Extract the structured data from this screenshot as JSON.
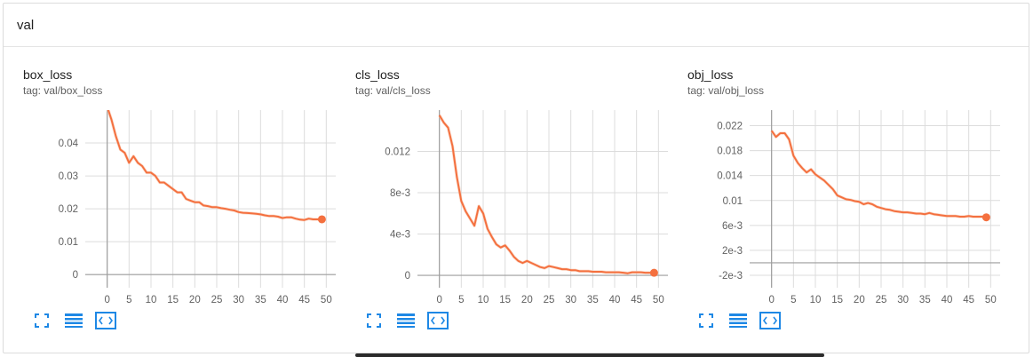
{
  "group": {
    "title": "val"
  },
  "colors": {
    "line": "#f4703f",
    "smoothed_bg": "#f8c9b3",
    "grid": "#dcdcdc",
    "axis": "#9e9e9e",
    "icon": "#1e88e5"
  },
  "toolbar": {
    "icons": [
      "fullscreen-icon",
      "data-table-icon",
      "fit-domain-icon"
    ]
  },
  "chart_data": [
    {
      "type": "line",
      "title": "box_loss",
      "tag": "tag: val/box_loss",
      "xlim": [
        -5,
        55
      ],
      "ylim": [
        -0.004,
        0.05
      ],
      "x_ticks": [
        0,
        5,
        10,
        15,
        20,
        25,
        30,
        35,
        40,
        45,
        50
      ],
      "x_tick_labels": [
        "0",
        "5",
        "10",
        "15",
        "20",
        "25",
        "30",
        "35",
        "40",
        "45",
        "50"
      ],
      "y_ticks": [
        0,
        0.01,
        0.02,
        0.03,
        0.04
      ],
      "y_tick_labels": [
        "0",
        "0.01",
        "0.02",
        "0.03",
        "0.04"
      ],
      "grid": true,
      "x": [
        0,
        1,
        2,
        3,
        4,
        5,
        6,
        7,
        8,
        9,
        10,
        11,
        12,
        13,
        14,
        15,
        16,
        17,
        18,
        19,
        20,
        21,
        22,
        23,
        24,
        25,
        26,
        27,
        28,
        29,
        30,
        31,
        32,
        33,
        34,
        35,
        36,
        37,
        38,
        39,
        40,
        41,
        42,
        43,
        44,
        45,
        46,
        47,
        48,
        49
      ],
      "y": [
        0.051,
        0.047,
        0.042,
        0.038,
        0.037,
        0.034,
        0.036,
        0.034,
        0.033,
        0.031,
        0.031,
        0.03,
        0.028,
        0.028,
        0.027,
        0.026,
        0.025,
        0.025,
        0.023,
        0.0225,
        0.022,
        0.022,
        0.021,
        0.0208,
        0.0205,
        0.0205,
        0.0202,
        0.02,
        0.0197,
        0.0195,
        0.019,
        0.0188,
        0.0187,
        0.0186,
        0.0185,
        0.0183,
        0.018,
        0.0178,
        0.0178,
        0.0176,
        0.0172,
        0.0174,
        0.0174,
        0.017,
        0.0167,
        0.0166,
        0.017,
        0.0168,
        0.0168,
        0.0168
      ]
    },
    {
      "type": "line",
      "title": "cls_loss",
      "tag": "tag: val/cls_loss",
      "xlim": [
        -5,
        55
      ],
      "ylim": [
        -0.0012,
        0.016
      ],
      "x_ticks": [
        0,
        5,
        10,
        15,
        20,
        25,
        30,
        35,
        40,
        45,
        50
      ],
      "x_tick_labels": [
        "0",
        "5",
        "10",
        "15",
        "20",
        "25",
        "30",
        "35",
        "40",
        "45",
        "50"
      ],
      "y_ticks": [
        0,
        0.004,
        0.008,
        0.012
      ],
      "y_tick_labels": [
        "0",
        "4e-3",
        "8e-3",
        "0.012"
      ],
      "grid": true,
      "x": [
        0,
        1,
        2,
        3,
        4,
        5,
        6,
        7,
        8,
        9,
        10,
        11,
        12,
        13,
        14,
        15,
        16,
        17,
        18,
        19,
        20,
        21,
        22,
        23,
        24,
        25,
        26,
        27,
        28,
        29,
        30,
        31,
        32,
        33,
        34,
        35,
        36,
        37,
        38,
        39,
        40,
        41,
        42,
        43,
        44,
        45,
        46,
        47,
        48,
        49
      ],
      "y": [
        0.0155,
        0.0148,
        0.0143,
        0.0125,
        0.0095,
        0.0072,
        0.0062,
        0.0055,
        0.0048,
        0.0067,
        0.006,
        0.0045,
        0.0037,
        0.003,
        0.0027,
        0.0029,
        0.0024,
        0.0018,
        0.0014,
        0.0012,
        0.0014,
        0.0012,
        0.001,
        0.0008,
        0.0007,
        0.0009,
        0.0008,
        0.0007,
        0.0006,
        0.0006,
        0.0005,
        0.0005,
        0.0004,
        0.0004,
        0.0004,
        0.00035,
        0.00035,
        0.00035,
        0.0003,
        0.0003,
        0.0003,
        0.0003,
        0.00025,
        0.0002,
        0.0003,
        0.0003,
        0.0003,
        0.00025,
        0.00025,
        0.00025
      ]
    },
    {
      "type": "line",
      "title": "obj_loss",
      "tag": "tag: val/obj_loss",
      "xlim": [
        -5,
        55
      ],
      "ylim": [
        -0.004,
        0.0245
      ],
      "x_ticks": [
        0,
        5,
        10,
        15,
        20,
        25,
        30,
        35,
        40,
        45,
        50
      ],
      "x_tick_labels": [
        "0",
        "5",
        "10",
        "15",
        "20",
        "25",
        "30",
        "35",
        "40",
        "45",
        "50"
      ],
      "y_ticks": [
        -0.002,
        0.002,
        0.006,
        0.01,
        0.014,
        0.018,
        0.022
      ],
      "y_tick_labels": [
        "-2e-3",
        "2e-3",
        "6e-3",
        "0.01",
        "0.014",
        "0.018",
        "0.022"
      ],
      "grid": true,
      "x": [
        0,
        1,
        2,
        3,
        4,
        5,
        6,
        7,
        8,
        9,
        10,
        11,
        12,
        13,
        14,
        15,
        16,
        17,
        18,
        19,
        20,
        21,
        22,
        23,
        24,
        25,
        26,
        27,
        28,
        29,
        30,
        31,
        32,
        33,
        34,
        35,
        36,
        37,
        38,
        39,
        40,
        41,
        42,
        43,
        44,
        45,
        46,
        47,
        48,
        49
      ],
      "y": [
        0.0212,
        0.0202,
        0.0208,
        0.0208,
        0.0198,
        0.0172,
        0.016,
        0.0152,
        0.0145,
        0.015,
        0.0142,
        0.0137,
        0.0132,
        0.0125,
        0.0118,
        0.0108,
        0.0105,
        0.0102,
        0.0101,
        0.0099,
        0.0098,
        0.0094,
        0.0096,
        0.0094,
        0.009,
        0.0088,
        0.0086,
        0.0085,
        0.0083,
        0.0082,
        0.0081,
        0.0081,
        0.008,
        0.0079,
        0.0079,
        0.0078,
        0.008,
        0.0078,
        0.0077,
        0.0076,
        0.0075,
        0.0075,
        0.0075,
        0.0074,
        0.0074,
        0.0075,
        0.0074,
        0.0074,
        0.0074,
        0.0073
      ]
    }
  ]
}
